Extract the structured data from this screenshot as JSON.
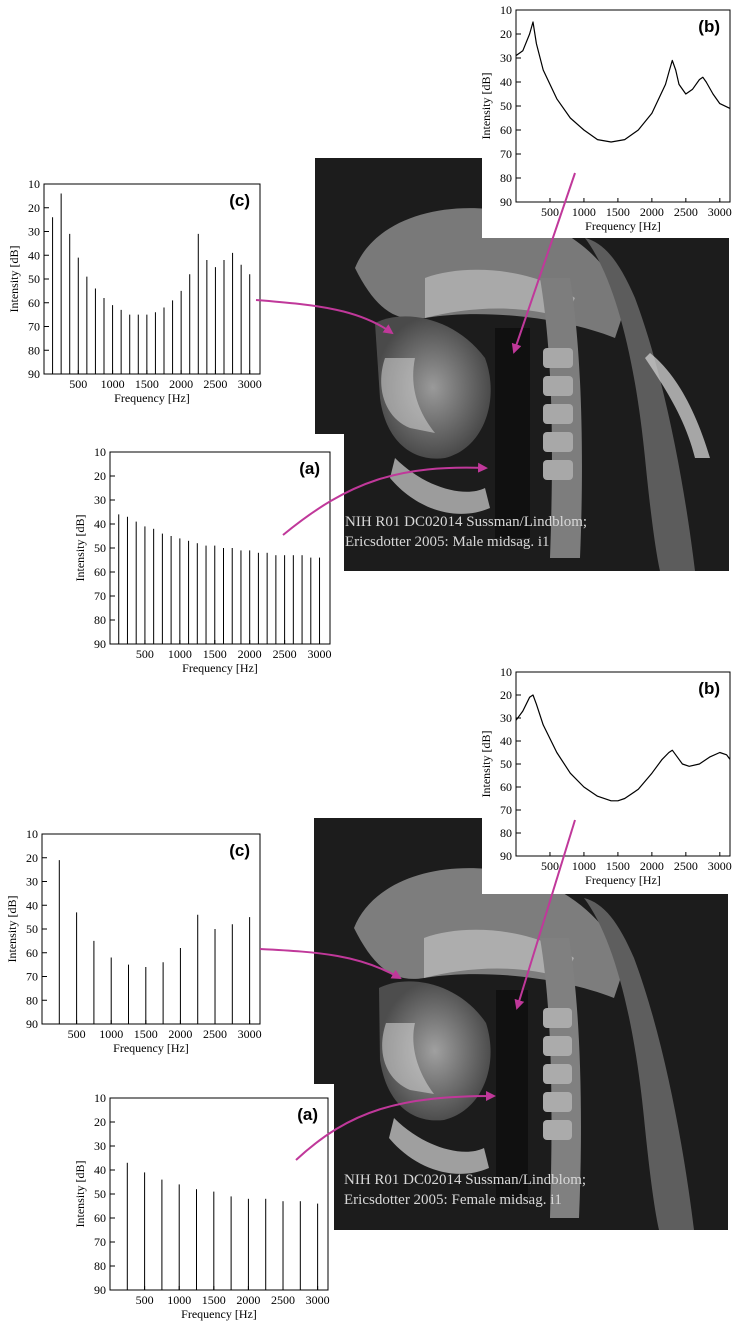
{
  "figures": [
    {
      "id": "male",
      "mri_caption": [
        "NIH R01 DC02014 Sussman/Lindblom;",
        "Ericsdotter 2005: Male midsag. i1"
      ],
      "panels": {
        "b": {
          "label": "(b)",
          "xlabel": "Frequency [Hz]",
          "ylabel": "Intensity [dB]",
          "yticks": [
            10,
            20,
            30,
            40,
            50,
            60,
            70,
            80,
            90
          ],
          "xticks": [
            500,
            1000,
            1500,
            2000,
            2500,
            3000
          ]
        },
        "c": {
          "label": "(c)",
          "xlabel": "Frequency [Hz]",
          "ylabel": "Intensity [dB]",
          "yticks": [
            10,
            20,
            30,
            40,
            50,
            60,
            70,
            80,
            90
          ],
          "xticks": [
            500,
            1000,
            1500,
            2000,
            2500,
            3000
          ]
        },
        "a": {
          "label": "(a)",
          "xlabel": "Frequency [Hz]",
          "ylabel": "Intensity [dB]",
          "yticks": [
            10,
            20,
            30,
            40,
            50,
            60,
            70,
            80,
            90
          ],
          "xticks": [
            500,
            1000,
            1500,
            2000,
            2500,
            3000
          ]
        }
      }
    },
    {
      "id": "female",
      "mri_caption": [
        "NIH R01 DC02014 Sussman/Lindblom;",
        "Ericsdotter 2005: Female midsag. i1"
      ],
      "panels": {
        "b": {
          "label": "(b)",
          "xlabel": "Frequency [Hz]",
          "ylabel": "Intensity [dB]",
          "yticks": [
            10,
            20,
            30,
            40,
            50,
            60,
            70,
            80,
            90
          ],
          "xticks": [
            500,
            1000,
            1500,
            2000,
            2500,
            3000
          ]
        },
        "c": {
          "label": "(c)",
          "xlabel": "Frequency [Hz]",
          "ylabel": "Intensity [dB]",
          "yticks": [
            10,
            20,
            30,
            40,
            50,
            60,
            70,
            80,
            90
          ],
          "xticks": [
            500,
            1000,
            1500,
            2000,
            2500,
            3000
          ]
        },
        "a": {
          "label": "(a)",
          "xlabel": "Frequency [Hz]",
          "ylabel": "Intensity [dB]",
          "yticks": [
            10,
            20,
            30,
            40,
            50,
            60,
            70,
            80,
            90
          ],
          "xticks": [
            500,
            1000,
            1500,
            2000,
            2500,
            3000
          ]
        }
      }
    }
  ],
  "colors": {
    "arrow": "#c0389a",
    "mri_bg": "#1c1c1c",
    "caption": "#d8d8d8"
  },
  "chart_data": [
    {
      "key": "male_b",
      "type": "line",
      "label": "(b)",
      "xlabel": "Frequency [Hz]",
      "ylabel": "Intensity [dB]",
      "xlim": [
        0,
        3150
      ],
      "ylim": [
        10,
        90
      ],
      "y_inverted": true,
      "x": [
        0,
        100,
        200,
        250,
        300,
        400,
        600,
        800,
        1000,
        1200,
        1400,
        1600,
        1800,
        2000,
        2200,
        2260,
        2300,
        2350,
        2400,
        2500,
        2600,
        2700,
        2750,
        2800,
        2900,
        3000,
        3150
      ],
      "values": [
        29,
        27,
        20,
        15,
        24,
        35,
        47,
        55,
        60,
        64,
        65,
        64,
        60,
        53,
        41,
        35,
        31,
        35,
        41,
        45,
        43,
        39,
        38,
        40,
        45,
        49,
        51
      ]
    },
    {
      "key": "male_c",
      "type": "bar",
      "label": "(c)",
      "xlabel": "Frequency [Hz]",
      "ylabel": "Intensity [dB]",
      "xlim": [
        0,
        3150
      ],
      "ylim": [
        10,
        90
      ],
      "y_inverted": true,
      "x": [
        125,
        250,
        375,
        500,
        625,
        750,
        875,
        1000,
        1125,
        1250,
        1375,
        1500,
        1625,
        1750,
        1875,
        2000,
        2125,
        2250,
        2375,
        2500,
        2625,
        2750,
        2875,
        3000
      ],
      "values": [
        24,
        14,
        31,
        41,
        49,
        54,
        58,
        61,
        63,
        65,
        65,
        65,
        64,
        62,
        59,
        55,
        48,
        31,
        42,
        45,
        42,
        39,
        44,
        48
      ]
    },
    {
      "key": "male_a",
      "type": "bar",
      "label": "(a)",
      "xlabel": "Frequency [Hz]",
      "ylabel": "Intensity [dB]",
      "xlim": [
        0,
        3150
      ],
      "ylim": [
        10,
        90
      ],
      "y_inverted": true,
      "x": [
        125,
        250,
        375,
        500,
        625,
        750,
        875,
        1000,
        1125,
        1250,
        1375,
        1500,
        1625,
        1750,
        1875,
        2000,
        2125,
        2250,
        2375,
        2500,
        2625,
        2750,
        2875,
        3000
      ],
      "values": [
        36,
        37,
        39,
        41,
        42,
        44,
        45,
        46,
        47,
        48,
        49,
        49,
        50,
        50,
        51,
        51,
        52,
        52,
        53,
        53,
        53,
        53,
        54,
        54
      ]
    },
    {
      "key": "female_b",
      "type": "line",
      "label": "(b)",
      "xlabel": "Frequency [Hz]",
      "ylabel": "Intensity [dB]",
      "xlim": [
        0,
        3150
      ],
      "ylim": [
        10,
        90
      ],
      "y_inverted": true,
      "x": [
        0,
        100,
        200,
        250,
        300,
        400,
        600,
        800,
        1000,
        1200,
        1400,
        1500,
        1600,
        1800,
        2000,
        2150,
        2250,
        2300,
        2350,
        2450,
        2550,
        2700,
        2850,
        3000,
        3100,
        3150
      ],
      "values": [
        31,
        27,
        21,
        20,
        24,
        33,
        45,
        54,
        60,
        64,
        66,
        66,
        65,
        61,
        54,
        48,
        45,
        44,
        46,
        50,
        51,
        50,
        47,
        45,
        46,
        48
      ]
    },
    {
      "key": "female_c",
      "type": "bar",
      "label": "(c)",
      "xlabel": "Frequency [Hz]",
      "ylabel": "Intensity [dB]",
      "xlim": [
        0,
        3150
      ],
      "ylim": [
        10,
        90
      ],
      "y_inverted": true,
      "x": [
        250,
        500,
        750,
        1000,
        1250,
        1500,
        1750,
        2000,
        2250,
        2500,
        2750,
        3000
      ],
      "values": [
        21,
        43,
        55,
        62,
        65,
        66,
        64,
        58,
        44,
        50,
        48,
        45
      ]
    },
    {
      "key": "female_a",
      "type": "bar",
      "label": "(a)",
      "xlabel": "Frequency [Hz]",
      "ylabel": "Intensity [dB]",
      "xlim": [
        0,
        3150
      ],
      "ylim": [
        10,
        90
      ],
      "y_inverted": true,
      "x": [
        250,
        500,
        750,
        1000,
        1250,
        1500,
        1750,
        2000,
        2250,
        2500,
        2750,
        3000
      ],
      "values": [
        37,
        41,
        44,
        46,
        48,
        49,
        51,
        52,
        52,
        53,
        53,
        54
      ]
    }
  ]
}
